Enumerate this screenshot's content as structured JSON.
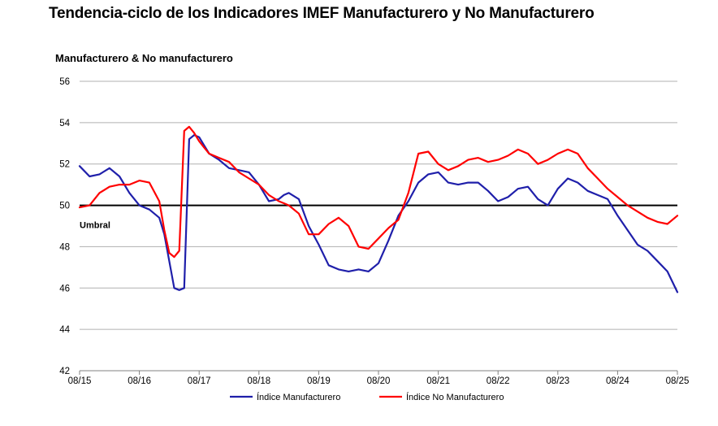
{
  "page_title": "Tendencia-ciclo de los Indicadores IMEF Manufacturero y No Manufacturero",
  "chart_data": {
    "type": "line",
    "title": "Manufacturero & No manufacturero",
    "xlabel": "",
    "ylabel": "",
    "ylim": [
      42,
      56
    ],
    "yticks": [
      42,
      44,
      46,
      48,
      50,
      52,
      54,
      56
    ],
    "xlim": [
      "2015-08",
      "2025-08"
    ],
    "xticks": [
      "08/15",
      "08/16",
      "08/17",
      "08/18",
      "08/19",
      "08/20",
      "08/21",
      "08/22",
      "08/23",
      "08/24",
      "08/25"
    ],
    "grid": true,
    "threshold": {
      "value": 50,
      "label": "Umbral"
    },
    "legend_position": "bottom",
    "series": [
      {
        "name": "Índice Manufacturero",
        "color": "#1f1faa",
        "x": [
          "2015-08",
          "2015-10",
          "2015-12",
          "2016-02",
          "2016-04",
          "2016-06",
          "2016-08",
          "2016-10",
          "2016-12",
          "2017-01",
          "2017-02",
          "2017-03",
          "2017-04",
          "2017-05",
          "2017-06",
          "2017-07",
          "2017-08",
          "2017-09",
          "2017-10",
          "2017-12",
          "2018-02",
          "2018-04",
          "2018-06",
          "2018-08",
          "2018-10",
          "2018-12",
          "2019-01",
          "2019-02",
          "2019-04",
          "2019-06",
          "2019-08",
          "2019-10",
          "2019-12",
          "2020-02",
          "2020-04",
          "2020-06",
          "2020-08",
          "2020-10",
          "2020-12",
          "2021-02",
          "2021-04",
          "2021-06",
          "2021-08",
          "2021-10",
          "2021-12",
          "2022-02",
          "2022-04",
          "2022-06",
          "2022-08",
          "2022-10",
          "2022-12",
          "2023-02",
          "2023-04",
          "2023-06",
          "2023-08",
          "2023-10",
          "2023-12",
          "2024-02",
          "2024-04",
          "2024-06",
          "2024-08",
          "2024-10",
          "2024-12",
          "2025-02",
          "2025-04",
          "2025-06",
          "2025-08"
        ],
        "values": [
          51.9,
          51.4,
          51.5,
          51.8,
          51.4,
          50.6,
          50.0,
          49.8,
          49.4,
          48.6,
          47.3,
          46.0,
          45.9,
          46.0,
          53.2,
          53.4,
          53.3,
          52.9,
          52.5,
          52.2,
          51.8,
          51.7,
          51.6,
          51.0,
          50.2,
          50.3,
          50.5,
          50.6,
          50.3,
          49.0,
          48.1,
          47.1,
          46.9,
          46.8,
          46.9,
          46.8,
          47.2,
          48.3,
          49.5,
          50.2,
          51.1,
          51.5,
          51.6,
          51.1,
          51.0,
          51.1,
          51.1,
          50.7,
          50.2,
          50.4,
          50.8,
          50.9,
          50.3,
          50.0,
          50.8,
          51.3,
          51.1,
          50.7,
          50.5,
          50.3,
          49.5,
          48.8,
          48.1,
          47.8,
          47.3,
          46.8,
          45.8
        ]
      },
      {
        "name": "Índice No Manufacturero",
        "color": "#ff0000",
        "x": [
          "2015-08",
          "2015-10",
          "2015-12",
          "2016-02",
          "2016-04",
          "2016-06",
          "2016-08",
          "2016-10",
          "2016-12",
          "2017-01",
          "2017-02",
          "2017-03",
          "2017-04",
          "2017-05",
          "2017-06",
          "2017-07",
          "2017-08",
          "2017-09",
          "2017-10",
          "2017-12",
          "2018-02",
          "2018-04",
          "2018-06",
          "2018-08",
          "2018-10",
          "2018-12",
          "2019-01",
          "2019-02",
          "2019-04",
          "2019-06",
          "2019-08",
          "2019-10",
          "2019-12",
          "2020-02",
          "2020-04",
          "2020-06",
          "2020-08",
          "2020-10",
          "2020-12",
          "2021-02",
          "2021-04",
          "2021-06",
          "2021-08",
          "2021-10",
          "2021-12",
          "2022-02",
          "2022-04",
          "2022-06",
          "2022-08",
          "2022-10",
          "2022-12",
          "2023-02",
          "2023-04",
          "2023-06",
          "2023-08",
          "2023-10",
          "2023-12",
          "2024-02",
          "2024-04",
          "2024-06",
          "2024-08",
          "2024-10",
          "2024-12",
          "2025-02",
          "2025-04",
          "2025-06",
          "2025-08"
        ],
        "values": [
          49.9,
          50.0,
          50.6,
          50.9,
          51.0,
          51.0,
          51.2,
          51.1,
          50.2,
          48.8,
          47.7,
          47.5,
          47.8,
          53.6,
          53.8,
          53.5,
          53.1,
          52.8,
          52.5,
          52.3,
          52.1,
          51.6,
          51.3,
          51.0,
          50.5,
          50.2,
          50.1,
          50.0,
          49.6,
          48.6,
          48.6,
          49.1,
          49.4,
          49.0,
          48.0,
          47.9,
          48.4,
          48.9,
          49.3,
          50.6,
          52.5,
          52.6,
          52.0,
          51.7,
          51.9,
          52.2,
          52.3,
          52.1,
          52.2,
          52.4,
          52.7,
          52.5,
          52.0,
          52.2,
          52.5,
          52.7,
          52.5,
          51.8,
          51.3,
          50.8,
          50.4,
          50.0,
          49.7,
          49.4,
          49.2,
          49.1,
          49.5
        ]
      }
    ]
  }
}
